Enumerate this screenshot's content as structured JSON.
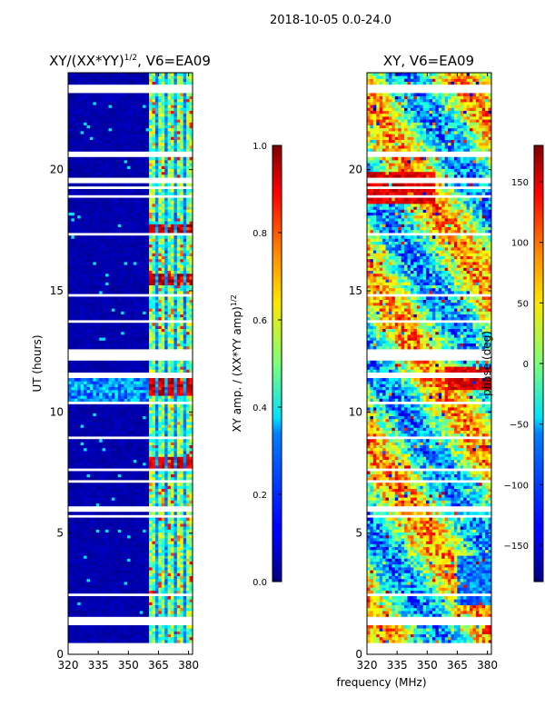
{
  "figure": {
    "suptitle": "2018-10-05 0.0-24.0",
    "xlabel": "frequency (MHz)"
  },
  "chart_data": [
    {
      "type": "heatmap",
      "title_main": "XY/(XX*YY)",
      "title_exp": "1/2",
      "title_tail": ", V6=EA09",
      "xlabel": "",
      "ylabel": "UT (hours)",
      "x_range": [
        320,
        382
      ],
      "x_ticks": [
        320,
        335,
        350,
        365,
        380
      ],
      "y_range": [
        0,
        24
      ],
      "y_ticks": [
        0,
        5,
        10,
        15,
        20
      ],
      "colorbar": {
        "label_main": "XY amp. / (XX*YY amp)",
        "label_exp": "1/2",
        "range": [
          0.0,
          1.0
        ],
        "ticks": [
          "0.0",
          "0.2",
          "0.4",
          "0.6",
          "0.8",
          "1.0"
        ],
        "colormap": "jet"
      }
    },
    {
      "type": "heatmap",
      "title": "XY, V6=EA09",
      "xlabel": "",
      "ylabel": "",
      "x_range": [
        320,
        382
      ],
      "x_ticks": [
        320,
        335,
        350,
        365,
        380
      ],
      "y_range": [
        0,
        24
      ],
      "y_ticks": [
        0,
        5,
        10,
        15,
        20
      ],
      "colorbar": {
        "label": "phase (deg)",
        "range": [
          -180,
          180
        ],
        "ticks": [
          "150",
          "100",
          "50",
          "0",
          "−50",
          "−100",
          "−150"
        ],
        "tick_values": [
          150,
          100,
          50,
          0,
          -50,
          -100,
          -150
        ],
        "colormap": "jet"
      }
    }
  ]
}
